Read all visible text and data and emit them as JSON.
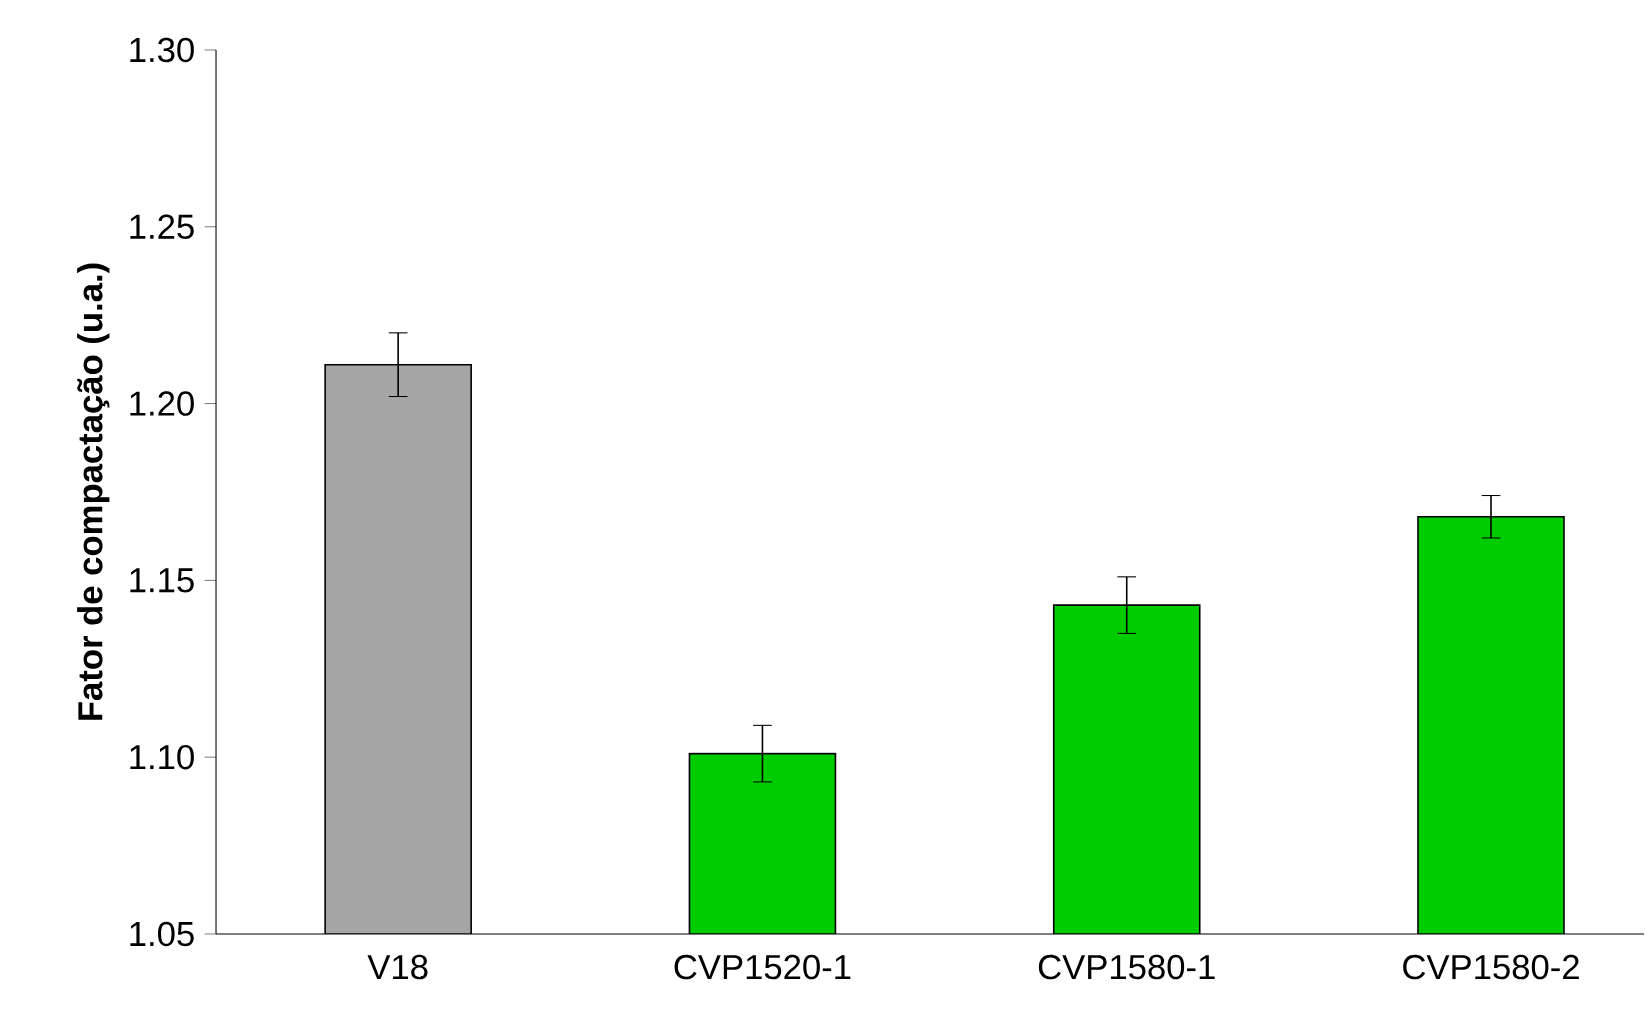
{
  "chart_data": {
    "type": "bar",
    "ylabel": "Fator de compactação (u.a.)",
    "categories": [
      "V18",
      "CVP1520-1",
      "CVP1580-1",
      "CVP1580-2"
    ],
    "values": [
      1.211,
      1.101,
      1.143,
      1.168
    ],
    "errors": [
      0.009,
      0.008,
      0.008,
      0.006
    ],
    "colors": [
      "#a6a6a6",
      "#00cc00",
      "#00cc00",
      "#00cc00"
    ],
    "ylim": [
      1.05,
      1.3
    ],
    "yticks": [
      {
        "value": 1.05,
        "label": "1.05"
      },
      {
        "value": 1.1,
        "label": "1.10"
      },
      {
        "value": 1.15,
        "label": "1.15"
      },
      {
        "value": 1.2,
        "label": "1.20"
      },
      {
        "value": 1.25,
        "label": "1.25"
      },
      {
        "value": 1.3,
        "label": "1.30"
      }
    ],
    "grid": false
  }
}
